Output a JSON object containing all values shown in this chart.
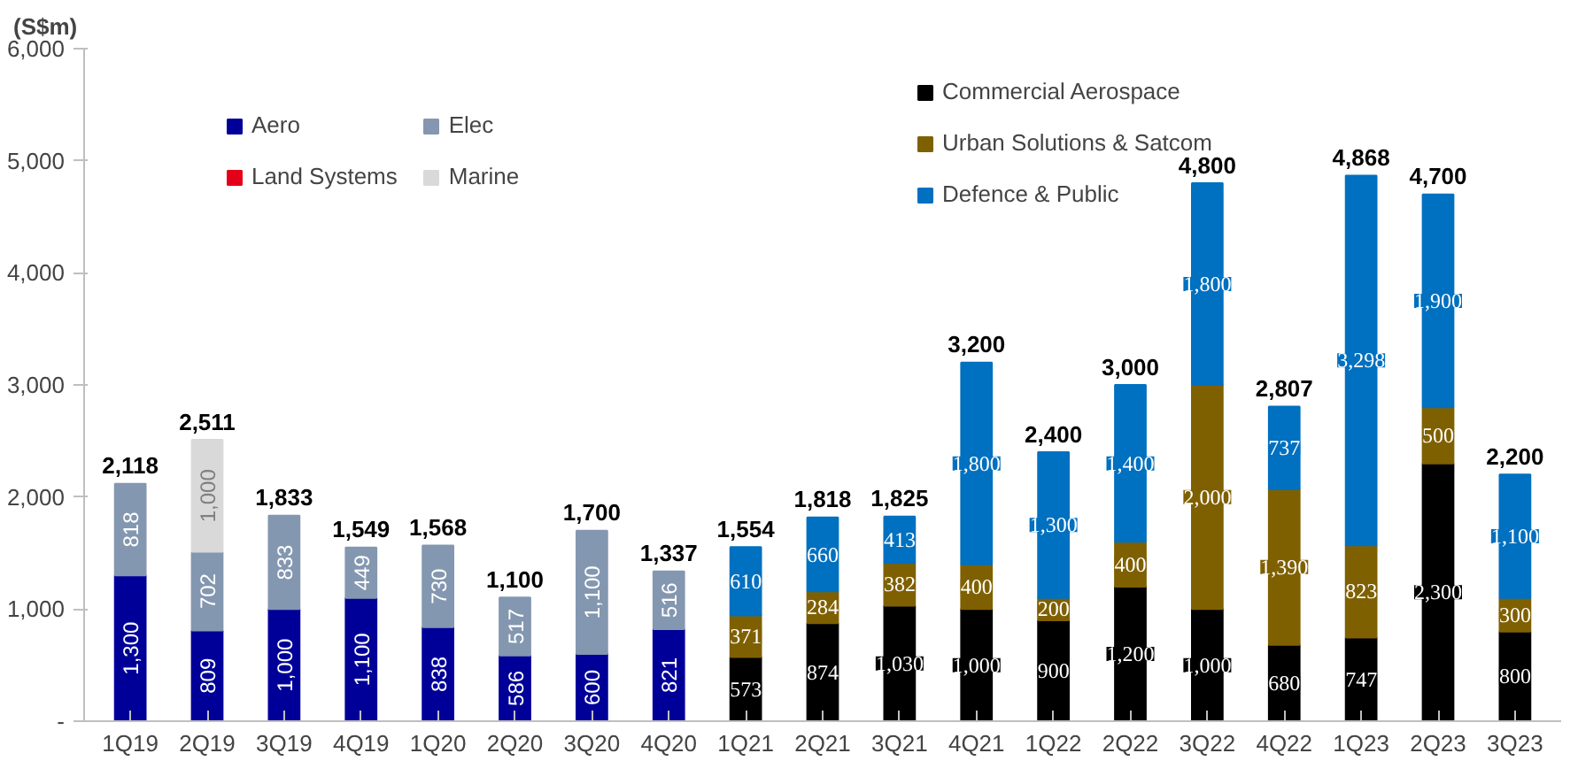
{
  "chart_data": {
    "type": "bar",
    "stacked": true,
    "ylabel": "(S$m)",
    "categories": [
      "1Q19",
      "2Q19",
      "3Q19",
      "4Q19",
      "1Q20",
      "2Q20",
      "3Q20",
      "4Q20",
      "1Q21",
      "2Q21",
      "3Q21",
      "4Q21",
      "1Q22",
      "2Q22",
      "3Q22",
      "4Q22",
      "1Q23",
      "2Q23",
      "3Q23"
    ],
    "series": [
      {
        "name": "Aero",
        "color": "#000099",
        "values": [
          1300,
          809,
          1000,
          1100,
          838,
          586,
          600,
          821,
          null,
          null,
          null,
          null,
          null,
          null,
          null,
          null,
          null,
          null,
          null
        ],
        "value_labels": [
          "1,300",
          "809",
          "1,000",
          "1,100",
          "838",
          "586",
          "600",
          "821",
          null,
          null,
          null,
          null,
          null,
          null,
          null,
          null,
          null,
          null,
          null
        ]
      },
      {
        "name": "Elec",
        "color": "#8497b0",
        "values": [
          818,
          702,
          833,
          449,
          730,
          517,
          1100,
          516,
          null,
          null,
          null,
          null,
          null,
          null,
          null,
          null,
          null,
          null,
          null
        ],
        "value_labels": [
          "818",
          "702",
          "833",
          "449",
          "730",
          "517",
          "1,100",
          "516",
          null,
          null,
          null,
          null,
          null,
          null,
          null,
          null,
          null,
          null,
          null
        ]
      },
      {
        "name": "Land Systems",
        "color": "#e50019",
        "values": [
          null,
          null,
          null,
          null,
          null,
          null,
          null,
          null,
          null,
          null,
          null,
          null,
          null,
          null,
          null,
          null,
          null,
          null,
          null
        ]
      },
      {
        "name": "Marine",
        "color": "#d9d9d9",
        "values": [
          null,
          1000,
          null,
          null,
          null,
          null,
          null,
          null,
          null,
          null,
          null,
          null,
          null,
          null,
          null,
          null,
          null,
          null,
          null
        ],
        "value_labels": [
          null,
          "1,000",
          null,
          null,
          null,
          null,
          null,
          null,
          null,
          null,
          null,
          null,
          null,
          null,
          null,
          null,
          null,
          null,
          null
        ]
      },
      {
        "name": "Commercial Aerospace",
        "color": "#000000",
        "values": [
          null,
          null,
          null,
          null,
          null,
          null,
          null,
          null,
          573,
          874,
          1030,
          1000,
          900,
          1200,
          1000,
          680,
          747,
          2300,
          800
        ],
        "value_labels": [
          null,
          null,
          null,
          null,
          null,
          null,
          null,
          null,
          "573",
          "874",
          "1,030",
          "1,000",
          "900",
          "1,200",
          "1,000",
          "680",
          "747",
          "2,300",
          "800"
        ]
      },
      {
        "name": "Urban Solutions & Satcom",
        "color": "#7f6000",
        "values": [
          null,
          null,
          null,
          null,
          null,
          null,
          null,
          null,
          371,
          284,
          382,
          400,
          200,
          400,
          2000,
          1390,
          823,
          500,
          300
        ],
        "value_labels": [
          null,
          null,
          null,
          null,
          null,
          null,
          null,
          null,
          "371",
          "284",
          "382",
          "400",
          "200",
          "400",
          "2,000",
          "1,390",
          "823",
          "500",
          "300"
        ]
      },
      {
        "name": "Defence & Public",
        "color": "#0070c0",
        "values": [
          null,
          null,
          null,
          null,
          null,
          null,
          null,
          null,
          610,
          660,
          413,
          1800,
          1300,
          1400,
          1800,
          737,
          3298,
          1900,
          1100
        ],
        "value_labels": [
          null,
          null,
          null,
          null,
          null,
          null,
          null,
          null,
          "610",
          "660",
          "413",
          "1,800",
          "1,300",
          "1,400",
          "1,800",
          "737",
          "3,298",
          "1,900",
          "1,100"
        ]
      }
    ],
    "totals": [
      "2,118",
      "2,511",
      "1,833",
      "1,549",
      "1,568",
      "1,100",
      "1,700",
      "1,337",
      "1,554",
      "1,818",
      "1,825",
      "3,200",
      "2,400",
      "3,000",
      "4,800",
      "2,807",
      "4,868",
      "4,700",
      "2,200"
    ],
    "grid": false,
    "legend": "top",
    "ylim": [
      0,
      6000
    ],
    "yticks": [
      {
        "value": 0,
        "label": "-"
      },
      {
        "value": 1000,
        "label": "1,000"
      },
      {
        "value": 2000,
        "label": "2,000"
      },
      {
        "value": 3000,
        "label": "3,000"
      },
      {
        "value": 4000,
        "label": "4,000"
      },
      {
        "value": 5000,
        "label": "5,000"
      },
      {
        "value": 6000,
        "label": "6,000"
      }
    ]
  }
}
